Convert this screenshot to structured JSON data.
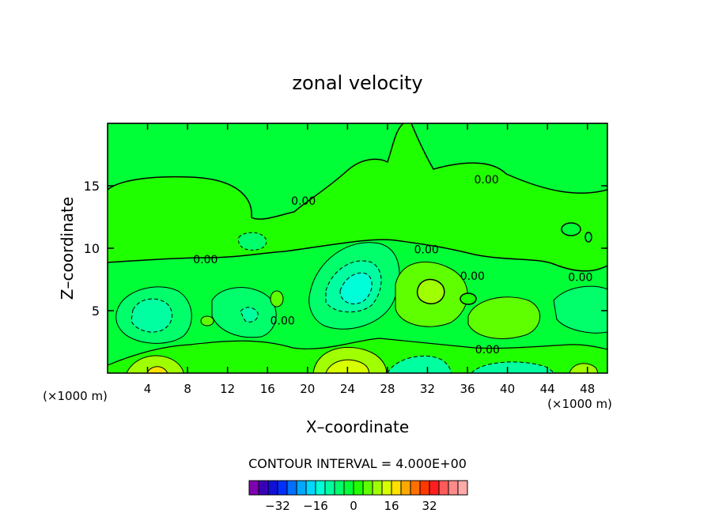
{
  "chart_data": {
    "type": "heatmap",
    "title": "zonal velocity",
    "xlabel": "X–coordinate",
    "ylabel": "Z–coordinate",
    "x_unit_left": "(×1000 m)",
    "x_unit_right": "(×1000 m)",
    "xlim": [
      0,
      50
    ],
    "ylim": [
      0,
      20
    ],
    "x_ticks": [
      4,
      8,
      12,
      16,
      20,
      24,
      28,
      32,
      36,
      40,
      44,
      48
    ],
    "y_ticks": [
      5,
      10,
      15
    ],
    "contour_interval_text": "CONTOUR INTERVAL = 4.000E+00",
    "contour_labels": [
      {
        "text": "0.00",
        "x": 19.6,
        "y": 13.8
      },
      {
        "text": "0.00",
        "x": 37.9,
        "y": 15.5
      },
      {
        "text": "0.00",
        "x": 9.8,
        "y": 9.1
      },
      {
        "text": "0.00",
        "x": 31.9,
        "y": 9.9
      },
      {
        "text": "0.00",
        "x": 36.5,
        "y": 7.8
      },
      {
        "text": "0.00",
        "x": 47.3,
        "y": 7.7
      },
      {
        "text": "0.00",
        "x": 38.0,
        "y": 1.9
      },
      {
        "text": "0.00",
        "x": 17.5,
        "y": 4.2
      }
    ],
    "colorbar": {
      "colors": [
        "#7f00b0",
        "#3a00b8",
        "#1010d8",
        "#0030ff",
        "#0070ff",
        "#00a8ff",
        "#00d8ff",
        "#00ffd8",
        "#00ffa0",
        "#00ff6a",
        "#00ff36",
        "#20ff00",
        "#60ff00",
        "#a0ff00",
        "#d8ff00",
        "#ffe000",
        "#ffa800",
        "#ff7000",
        "#ff3800",
        "#ff1e1e",
        "#ff5a5a",
        "#ff8a8a",
        "#ffaaaa"
      ],
      "tick_values": [
        -32,
        -16,
        0,
        16,
        32
      ],
      "tick_labels": [
        "−32",
        "−16",
        "0",
        "16",
        "32"
      ],
      "vmin": -44,
      "vmax": 48
    },
    "regions": [
      {
        "value": 0,
        "color": "#20ff00"
      },
      {
        "value": -4,
        "color": "#00ff36"
      },
      {
        "value": -8,
        "color": "#00ff6a"
      },
      {
        "value": -12,
        "color": "#00ffa0"
      },
      {
        "value": 4,
        "color": "#60ff00"
      },
      {
        "value": 8,
        "color": "#a0ff00"
      },
      {
        "value": 12,
        "color": "#d8ff00"
      },
      {
        "value": 16,
        "color": "#ffe000"
      }
    ]
  }
}
